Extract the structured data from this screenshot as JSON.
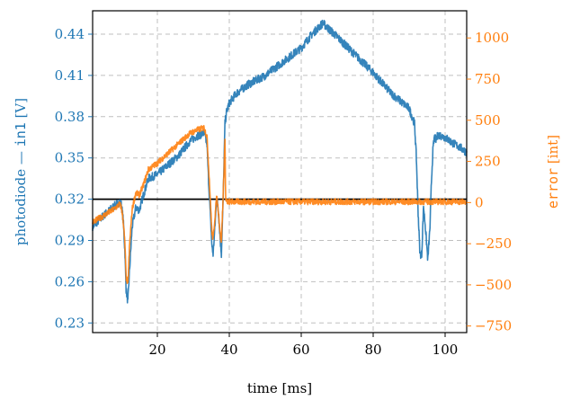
{
  "chart_data": {
    "type": "line",
    "xlabel": "time [ms]",
    "ylabel_left": {
      "prefix": "photodiode — ",
      "code": "in1",
      "suffix": " [V]"
    },
    "ylabel_right": {
      "code": "error",
      "suffix": " [int]"
    },
    "xlim": [
      2,
      106
    ],
    "ylim_left": [
      0.223,
      0.457
    ],
    "ylim_right": [
      -790,
      1165
    ],
    "x_ticks": [
      20,
      40,
      60,
      80,
      100
    ],
    "y_left_ticks": [
      "0.23",
      "0.26",
      "0.29",
      "0.32",
      "0.35",
      "0.38",
      "0.41",
      "0.44"
    ],
    "y_right_ticks": [
      "−750",
      "−500",
      "−250",
      "0",
      "250",
      "500",
      "750",
      "1000"
    ],
    "y_right_tick_values": [
      -750,
      -500,
      -250,
      0,
      250,
      500,
      750,
      1000
    ],
    "grid": true,
    "colors": {
      "left": "#1f77b4",
      "right": "#ff7f0e",
      "setpoint": "#000000",
      "grid": "#b0b0b0"
    },
    "setpoint": {
      "axis": "left",
      "y": 0.32,
      "x": [
        2,
        106
      ]
    },
    "series": [
      {
        "axis": "left",
        "color": "#1f77b4",
        "noise": 0.003,
        "x": [
          2,
          5,
          8,
          9.5,
          10,
          10.5,
          11,
          11.3,
          11.8,
          12.3,
          13,
          14,
          15,
          16,
          17.5,
          20,
          23,
          26,
          29,
          31,
          33,
          33.8,
          34.3,
          35.2,
          35.5,
          36,
          36.5,
          37,
          37.5,
          37.8,
          38.3,
          38.8,
          39.2,
          40,
          42,
          45,
          50,
          55,
          60,
          63,
          66,
          70,
          75,
          80,
          85,
          90,
          91.5,
          92,
          92.5,
          93,
          93.5,
          94,
          94.5,
          95.2,
          95.8,
          96.2,
          96.6,
          97,
          97.5,
          98,
          100,
          102,
          104,
          106
        ],
        "y": [
          0.3,
          0.308,
          0.315,
          0.318,
          0.316,
          0.305,
          0.28,
          0.255,
          0.245,
          0.27,
          0.3,
          0.314,
          0.312,
          0.322,
          0.335,
          0.338,
          0.345,
          0.352,
          0.362,
          0.366,
          0.368,
          0.36,
          0.33,
          0.285,
          0.28,
          0.3,
          0.322,
          0.31,
          0.29,
          0.28,
          0.32,
          0.375,
          0.383,
          0.39,
          0.397,
          0.403,
          0.41,
          0.42,
          0.43,
          0.44,
          0.448,
          0.438,
          0.425,
          0.412,
          0.397,
          0.386,
          0.375,
          0.35,
          0.31,
          0.28,
          0.28,
          0.315,
          0.3,
          0.276,
          0.3,
          0.333,
          0.355,
          0.365,
          0.363,
          0.367,
          0.365,
          0.361,
          0.358,
          0.354
        ]
      },
      {
        "axis": "right",
        "color": "#ff7f0e",
        "noise": 18,
        "x": [
          2,
          5,
          8,
          9.5,
          10,
          10.5,
          11,
          11.3,
          11.8,
          12.3,
          13,
          14,
          15,
          16,
          17.5,
          20,
          23,
          26,
          29,
          31,
          33,
          33.8,
          34.3,
          35.2,
          35.5,
          36,
          36.5,
          37,
          37.5,
          37.8,
          38.3,
          38.8,
          39,
          39.3,
          106
        ],
        "y": [
          -120,
          -80,
          -40,
          -10,
          -30,
          -110,
          -260,
          -450,
          -500,
          -250,
          -40,
          60,
          45,
          100,
          200,
          240,
          300,
          360,
          420,
          440,
          455,
          400,
          200,
          -190,
          -220,
          -90,
          40,
          -60,
          -200,
          -240,
          40,
          380,
          10,
          5,
          5
        ]
      }
    ]
  }
}
